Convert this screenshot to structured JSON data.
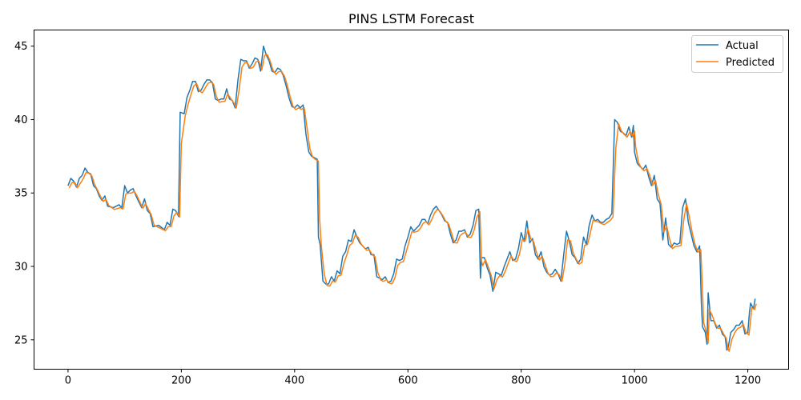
{
  "chart_data": {
    "type": "line",
    "title": "PINS LSTM Forecast",
    "xlabel": "",
    "ylabel": "",
    "xlim": [
      -60,
      1272
    ],
    "ylim": [
      23.0,
      46.1
    ],
    "xticks": [
      0,
      200,
      400,
      600,
      800,
      1000,
      1200
    ],
    "yticks": [
      25,
      30,
      35,
      40,
      45
    ],
    "grid": false,
    "legend_position": "top-right",
    "series": [
      {
        "name": "Actual",
        "color": "#1f77b4",
        "points": [
          [
            0,
            35.5
          ],
          [
            5,
            36.0
          ],
          [
            10,
            35.8
          ],
          [
            15,
            35.4
          ],
          [
            20,
            36.0
          ],
          [
            25,
            36.2
          ],
          [
            30,
            36.7
          ],
          [
            35,
            36.4
          ],
          [
            40,
            36.3
          ],
          [
            45,
            35.5
          ],
          [
            50,
            35.3
          ],
          [
            55,
            34.8
          ],
          [
            60,
            34.5
          ],
          [
            65,
            34.8
          ],
          [
            70,
            34.1
          ],
          [
            80,
            34.0
          ],
          [
            90,
            34.2
          ],
          [
            95,
            34.0
          ],
          [
            100,
            35.5
          ],
          [
            105,
            35.0
          ],
          [
            110,
            35.2
          ],
          [
            115,
            35.3
          ],
          [
            120,
            34.8
          ],
          [
            125,
            34.4
          ],
          [
            130,
            34.0
          ],
          [
            135,
            34.6
          ],
          [
            140,
            33.8
          ],
          [
            145,
            33.6
          ],
          [
            150,
            32.7
          ],
          [
            160,
            32.8
          ],
          [
            170,
            32.5
          ],
          [
            175,
            33.0
          ],
          [
            180,
            32.8
          ],
          [
            185,
            33.9
          ],
          [
            190,
            33.8
          ],
          [
            195,
            33.4
          ],
          [
            198,
            40.5
          ],
          [
            205,
            40.4
          ],
          [
            210,
            41.5
          ],
          [
            215,
            42.0
          ],
          [
            220,
            42.6
          ],
          [
            225,
            42.6
          ],
          [
            230,
            41.9
          ],
          [
            235,
            42.0
          ],
          [
            240,
            42.4
          ],
          [
            245,
            42.7
          ],
          [
            250,
            42.7
          ],
          [
            255,
            42.5
          ],
          [
            260,
            41.4
          ],
          [
            265,
            41.3
          ],
          [
            270,
            41.4
          ],
          [
            275,
            41.4
          ],
          [
            280,
            42.1
          ],
          [
            285,
            41.4
          ],
          [
            290,
            41.3
          ],
          [
            295,
            40.8
          ],
          [
            300,
            42.7
          ],
          [
            305,
            44.1
          ],
          [
            310,
            44.0
          ],
          [
            315,
            44.0
          ],
          [
            320,
            43.5
          ],
          [
            325,
            43.8
          ],
          [
            330,
            44.2
          ],
          [
            335,
            44.1
          ],
          [
            340,
            43.3
          ],
          [
            345,
            45.0
          ],
          [
            350,
            44.4
          ],
          [
            355,
            44.0
          ],
          [
            360,
            43.3
          ],
          [
            365,
            43.2
          ],
          [
            370,
            43.5
          ],
          [
            375,
            43.4
          ],
          [
            380,
            43.0
          ],
          [
            385,
            42.3
          ],
          [
            390,
            41.5
          ],
          [
            395,
            40.9
          ],
          [
            400,
            40.8
          ],
          [
            405,
            41.0
          ],
          [
            410,
            40.8
          ],
          [
            415,
            41.0
          ],
          [
            420,
            39.0
          ],
          [
            425,
            37.8
          ],
          [
            430,
            37.5
          ],
          [
            435,
            37.4
          ],
          [
            440,
            37.3
          ],
          [
            442,
            32.0
          ],
          [
            445,
            31.5
          ],
          [
            450,
            29.0
          ],
          [
            455,
            28.8
          ],
          [
            460,
            28.8
          ],
          [
            465,
            29.3
          ],
          [
            470,
            29.0
          ],
          [
            475,
            29.7
          ],
          [
            480,
            29.5
          ],
          [
            485,
            30.7
          ],
          [
            490,
            31.0
          ],
          [
            495,
            31.8
          ],
          [
            500,
            31.7
          ],
          [
            505,
            32.5
          ],
          [
            510,
            32.0
          ],
          [
            515,
            31.6
          ],
          [
            520,
            31.4
          ],
          [
            525,
            31.2
          ],
          [
            530,
            31.3
          ],
          [
            535,
            30.8
          ],
          [
            540,
            30.8
          ],
          [
            545,
            29.3
          ],
          [
            550,
            29.2
          ],
          [
            555,
            29.1
          ],
          [
            560,
            29.3
          ],
          [
            565,
            28.9
          ],
          [
            570,
            29.0
          ],
          [
            575,
            29.5
          ],
          [
            580,
            30.5
          ],
          [
            585,
            30.4
          ],
          [
            590,
            30.5
          ],
          [
            595,
            31.4
          ],
          [
            600,
            32.0
          ],
          [
            605,
            32.7
          ],
          [
            610,
            32.4
          ],
          [
            615,
            32.6
          ],
          [
            620,
            32.8
          ],
          [
            625,
            33.2
          ],
          [
            630,
            33.2
          ],
          [
            635,
            32.9
          ],
          [
            640,
            33.5
          ],
          [
            645,
            33.9
          ],
          [
            650,
            34.1
          ],
          [
            655,
            33.8
          ],
          [
            660,
            33.5
          ],
          [
            665,
            33.1
          ],
          [
            670,
            33.0
          ],
          [
            675,
            32.2
          ],
          [
            680,
            31.6
          ],
          [
            685,
            31.8
          ],
          [
            690,
            32.4
          ],
          [
            695,
            32.4
          ],
          [
            700,
            32.5
          ],
          [
            705,
            32.0
          ],
          [
            710,
            32.2
          ],
          [
            715,
            32.8
          ],
          [
            720,
            33.8
          ],
          [
            725,
            33.9
          ],
          [
            728,
            29.2
          ],
          [
            730,
            30.6
          ],
          [
            735,
            30.6
          ],
          [
            740,
            29.9
          ],
          [
            745,
            29.4
          ],
          [
            750,
            28.3
          ],
          [
            755,
            29.6
          ],
          [
            760,
            29.5
          ],
          [
            765,
            29.4
          ],
          [
            770,
            30.0
          ],
          [
            775,
            30.5
          ],
          [
            780,
            31.0
          ],
          [
            785,
            30.4
          ],
          [
            790,
            30.5
          ],
          [
            795,
            31.2
          ],
          [
            800,
            32.3
          ],
          [
            805,
            31.7
          ],
          [
            810,
            33.1
          ],
          [
            815,
            31.6
          ],
          [
            820,
            31.9
          ],
          [
            825,
            30.8
          ],
          [
            830,
            30.5
          ],
          [
            835,
            31.0
          ],
          [
            840,
            30.0
          ],
          [
            845,
            29.6
          ],
          [
            850,
            29.4
          ],
          [
            855,
            29.5
          ],
          [
            860,
            29.8
          ],
          [
            865,
            29.5
          ],
          [
            870,
            29.0
          ],
          [
            875,
            30.8
          ],
          [
            880,
            32.4
          ],
          [
            885,
            31.7
          ],
          [
            890,
            30.8
          ],
          [
            895,
            30.6
          ],
          [
            900,
            30.2
          ],
          [
            905,
            30.5
          ],
          [
            910,
            32.0
          ],
          [
            915,
            31.5
          ],
          [
            920,
            32.8
          ],
          [
            925,
            33.5
          ],
          [
            930,
            33.1
          ],
          [
            935,
            33.2
          ],
          [
            940,
            33.0
          ],
          [
            945,
            33.0
          ],
          [
            950,
            33.2
          ],
          [
            955,
            33.3
          ],
          [
            960,
            33.6
          ],
          [
            965,
            40.0
          ],
          [
            970,
            39.8
          ],
          [
            975,
            39.2
          ],
          [
            980,
            39.1
          ],
          [
            985,
            38.9
          ],
          [
            990,
            39.5
          ],
          [
            995,
            38.8
          ],
          [
            998,
            39.6
          ],
          [
            1000,
            37.8
          ],
          [
            1005,
            37.0
          ],
          [
            1010,
            36.8
          ],
          [
            1015,
            36.6
          ],
          [
            1020,
            36.9
          ],
          [
            1025,
            36.1
          ],
          [
            1030,
            35.5
          ],
          [
            1035,
            36.2
          ],
          [
            1040,
            34.6
          ],
          [
            1045,
            34.3
          ],
          [
            1050,
            31.8
          ],
          [
            1055,
            33.3
          ],
          [
            1060,
            31.5
          ],
          [
            1065,
            31.3
          ],
          [
            1070,
            31.6
          ],
          [
            1075,
            31.5
          ],
          [
            1080,
            31.6
          ],
          [
            1085,
            34.0
          ],
          [
            1090,
            34.6
          ],
          [
            1095,
            33.0
          ],
          [
            1100,
            32.2
          ],
          [
            1105,
            31.4
          ],
          [
            1110,
            31.0
          ],
          [
            1115,
            31.4
          ],
          [
            1118,
            27.5
          ],
          [
            1120,
            25.9
          ],
          [
            1125,
            25.5
          ],
          [
            1128,
            24.7
          ],
          [
            1130,
            28.2
          ],
          [
            1135,
            26.3
          ],
          [
            1140,
            26.3
          ],
          [
            1145,
            25.8
          ],
          [
            1150,
            26.0
          ],
          [
            1155,
            25.4
          ],
          [
            1160,
            25.2
          ],
          [
            1163,
            24.3
          ],
          [
            1165,
            24.4
          ],
          [
            1170,
            25.5
          ],
          [
            1175,
            25.7
          ],
          [
            1180,
            26.0
          ],
          [
            1185,
            26.0
          ],
          [
            1190,
            26.3
          ],
          [
            1195,
            25.4
          ],
          [
            1200,
            25.5
          ],
          [
            1203,
            26.9
          ],
          [
            1205,
            27.5
          ],
          [
            1210,
            27.1
          ],
          [
            1213,
            27.8
          ]
        ]
      },
      {
        "name": "Predicted",
        "color": "#ff7f0e"
      }
    ]
  }
}
